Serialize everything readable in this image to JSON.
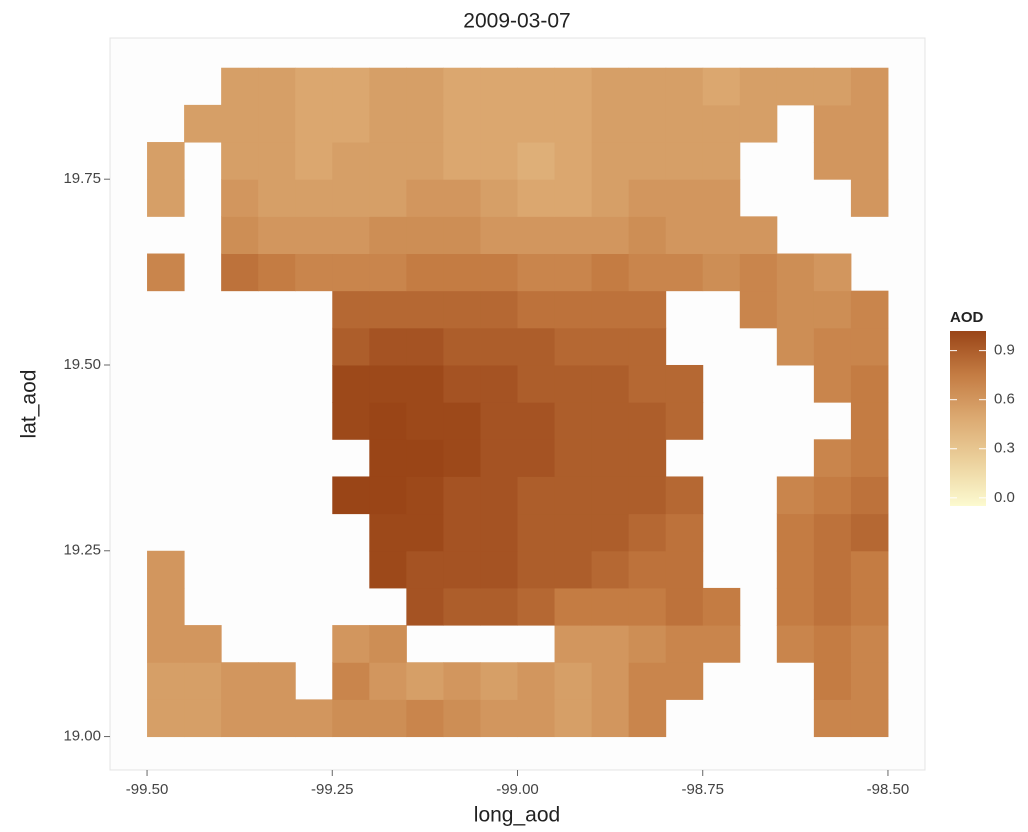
{
  "chart_data": {
    "type": "heatmap",
    "title": "2009-03-07",
    "x_label": "long_aod",
    "y_label": "lat_aod",
    "x": [
      -99.475,
      -99.425,
      -99.375,
      -99.325,
      -99.275,
      -99.225,
      -99.175,
      -99.125,
      -99.075,
      -99.025,
      -98.975,
      -98.925,
      -98.875,
      -98.825,
      -98.775,
      -98.725,
      -98.675,
      -98.625,
      -98.575,
      -98.525
    ],
    "y": [
      19.025,
      19.075,
      19.125,
      19.175,
      19.225,
      19.275,
      19.325,
      19.375,
      19.425,
      19.475,
      19.525,
      19.575,
      19.625,
      19.675,
      19.725,
      19.775,
      19.825,
      19.875
    ],
    "z": [
      [
        0.55,
        0.55,
        0.6,
        0.6,
        0.6,
        0.65,
        0.65,
        0.7,
        0.65,
        0.6,
        0.6,
        0.55,
        0.6,
        0.7,
        null,
        null,
        null,
        null,
        0.7,
        0.7
      ],
      [
        0.55,
        0.55,
        0.6,
        0.6,
        null,
        0.7,
        0.6,
        0.55,
        0.6,
        0.55,
        0.6,
        0.55,
        0.6,
        0.7,
        0.7,
        null,
        null,
        null,
        0.75,
        0.7
      ],
      [
        0.6,
        0.6,
        null,
        null,
        null,
        0.6,
        0.65,
        null,
        null,
        null,
        null,
        0.6,
        0.6,
        0.65,
        0.7,
        0.7,
        null,
        0.7,
        0.75,
        0.7
      ],
      [
        0.6,
        null,
        null,
        null,
        null,
        null,
        null,
        0.95,
        0.9,
        0.9,
        0.85,
        0.75,
        0.75,
        0.75,
        0.8,
        0.75,
        null,
        0.75,
        0.8,
        0.75
      ],
      [
        0.6,
        null,
        null,
        null,
        null,
        null,
        1.0,
        0.95,
        0.95,
        0.95,
        0.9,
        0.9,
        0.85,
        0.8,
        0.8,
        null,
        null,
        0.75,
        0.8,
        0.75
      ],
      [
        null,
        null,
        null,
        null,
        null,
        null,
        1.0,
        1.0,
        0.95,
        0.95,
        0.9,
        0.9,
        0.9,
        0.85,
        0.8,
        null,
        null,
        0.75,
        0.8,
        0.85
      ],
      [
        null,
        null,
        null,
        null,
        null,
        1.05,
        1.05,
        1.0,
        0.95,
        0.95,
        0.9,
        0.9,
        0.9,
        0.9,
        0.85,
        null,
        null,
        0.7,
        0.75,
        0.8
      ],
      [
        null,
        null,
        null,
        null,
        null,
        null,
        1.05,
        1.05,
        1.0,
        0.95,
        0.95,
        0.9,
        0.9,
        0.9,
        null,
        null,
        null,
        null,
        0.7,
        0.75
      ],
      [
        null,
        null,
        null,
        null,
        null,
        1.0,
        1.05,
        1.0,
        1.0,
        0.95,
        0.95,
        0.9,
        0.9,
        0.9,
        0.85,
        null,
        null,
        null,
        null,
        0.75
      ],
      [
        null,
        null,
        null,
        null,
        null,
        1.0,
        1.0,
        1.0,
        0.95,
        0.95,
        0.9,
        0.9,
        0.9,
        0.85,
        0.85,
        null,
        null,
        null,
        0.7,
        0.75
      ],
      [
        null,
        null,
        null,
        null,
        null,
        0.9,
        0.95,
        0.95,
        0.9,
        0.9,
        0.9,
        0.85,
        0.85,
        0.85,
        null,
        null,
        null,
        0.65,
        0.7,
        0.7
      ],
      [
        null,
        null,
        null,
        null,
        null,
        0.85,
        0.85,
        0.85,
        0.85,
        0.85,
        0.8,
        0.8,
        0.8,
        0.8,
        null,
        null,
        0.7,
        0.65,
        0.65,
        0.7
      ],
      [
        0.7,
        null,
        0.8,
        0.75,
        0.7,
        0.7,
        0.7,
        0.75,
        0.75,
        0.75,
        0.7,
        0.7,
        0.75,
        0.7,
        0.7,
        0.65,
        0.7,
        0.65,
        0.6,
        null
      ],
      [
        null,
        null,
        0.65,
        0.6,
        0.6,
        0.6,
        0.65,
        0.65,
        0.65,
        0.6,
        0.6,
        0.6,
        0.6,
        0.65,
        0.6,
        0.6,
        0.6,
        null,
        null,
        null
      ],
      [
        0.55,
        null,
        0.6,
        0.55,
        0.55,
        0.55,
        0.55,
        0.6,
        0.6,
        0.55,
        0.5,
        0.5,
        0.55,
        0.6,
        0.6,
        0.6,
        null,
        null,
        null,
        0.6
      ],
      [
        0.55,
        null,
        0.55,
        0.55,
        0.5,
        0.55,
        0.55,
        0.55,
        0.5,
        0.5,
        0.45,
        0.5,
        0.55,
        0.55,
        0.55,
        0.55,
        null,
        null,
        0.6,
        0.6
      ],
      [
        null,
        0.55,
        0.55,
        0.55,
        0.5,
        0.5,
        0.55,
        0.55,
        0.5,
        0.5,
        0.5,
        0.5,
        0.55,
        0.55,
        0.55,
        0.55,
        0.55,
        null,
        0.6,
        0.6
      ],
      [
        null,
        null,
        0.55,
        0.55,
        0.5,
        0.5,
        0.55,
        0.55,
        0.5,
        0.5,
        0.5,
        0.5,
        0.55,
        0.55,
        0.55,
        0.5,
        0.55,
        0.55,
        0.55,
        0.6
      ]
    ],
    "xlim": [
      -99.55,
      -98.45
    ],
    "ylim": [
      18.955,
      19.94
    ],
    "xticks": [
      {
        "value": -99.5,
        "label": "-99.50"
      },
      {
        "value": -99.25,
        "label": "-99.25"
      },
      {
        "value": -99.0,
        "label": "-99.00"
      },
      {
        "value": -98.75,
        "label": "-98.75"
      },
      {
        "value": -98.5,
        "label": "-98.50"
      }
    ],
    "yticks": [
      {
        "value": 19.0,
        "label": "19.00"
      },
      {
        "value": 19.25,
        "label": "19.25"
      },
      {
        "value": 19.5,
        "label": "19.50"
      },
      {
        "value": 19.75,
        "label": "19.75"
      }
    ],
    "legend_title": "AOD",
    "clim": [
      -0.05,
      1.02
    ],
    "cticks": [
      {
        "value": 0.0,
        "label": "0.0"
      },
      {
        "value": 0.3,
        "label": "0.3"
      },
      {
        "value": 0.6,
        "label": "0.6"
      },
      {
        "value": 0.9,
        "label": "0.9"
      }
    ],
    "colorscale": [
      "#fcfad0",
      "#ecd29e",
      "#dcaa72",
      "#c47c43",
      "#9a4517"
    ]
  }
}
